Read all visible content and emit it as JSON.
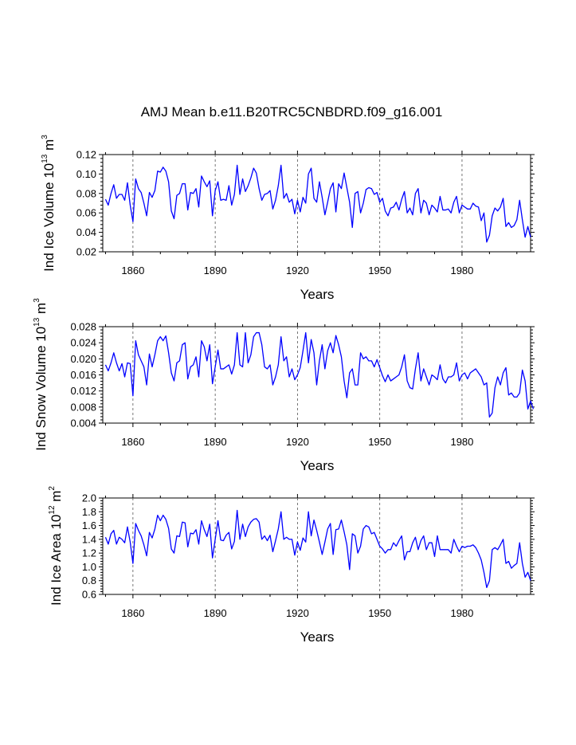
{
  "figure_title": "AMJ Mean b.e11.B20TRC5CNBDRD.f09_g16.001",
  "chart_data": [
    {
      "type": "line",
      "title": "",
      "ylabel": {
        "prefix": "Ind Ice Volume 10",
        "exp": "13",
        "unit": " m",
        "unit_exp": "3"
      },
      "xlabel": "Years",
      "xlim": [
        1849,
        2005
      ],
      "ylim": [
        0.02,
        0.12
      ],
      "xticks": [
        1860,
        1890,
        1920,
        1950,
        1980
      ],
      "xtick_labels": [
        "1860",
        "1890",
        "1920",
        "1950",
        "1980"
      ],
      "yticks": [
        0.02,
        0.04,
        0.06,
        0.08,
        0.1,
        0.12
      ],
      "ytick_labels": [
        "0.02",
        "0.04",
        "0.06",
        "0.08",
        "0.10",
        "0.12"
      ],
      "grid": "vertical dashed at x ticks",
      "line_color": "#0000ff",
      "x_start": 1850,
      "values": [
        0.074,
        0.068,
        0.08,
        0.089,
        0.075,
        0.079,
        0.079,
        0.073,
        0.091,
        0.068,
        0.051,
        0.095,
        0.085,
        0.081,
        0.07,
        0.057,
        0.081,
        0.076,
        0.083,
        0.103,
        0.102,
        0.107,
        0.103,
        0.092,
        0.062,
        0.054,
        0.078,
        0.08,
        0.09,
        0.09,
        0.063,
        0.081,
        0.08,
        0.085,
        0.066,
        0.098,
        0.092,
        0.087,
        0.093,
        0.057,
        0.083,
        0.092,
        0.073,
        0.074,
        0.073,
        0.088,
        0.068,
        0.079,
        0.109,
        0.079,
        0.095,
        0.082,
        0.088,
        0.096,
        0.106,
        0.101,
        0.085,
        0.073,
        0.079,
        0.08,
        0.083,
        0.064,
        0.073,
        0.088,
        0.109,
        0.075,
        0.08,
        0.071,
        0.074,
        0.059,
        0.073,
        0.061,
        0.076,
        0.07,
        0.1,
        0.106,
        0.075,
        0.071,
        0.092,
        0.076,
        0.058,
        0.071,
        0.085,
        0.091,
        0.061,
        0.09,
        0.085,
        0.101,
        0.086,
        0.071,
        0.045,
        0.08,
        0.082,
        0.06,
        0.07,
        0.084,
        0.086,
        0.085,
        0.079,
        0.081,
        0.071,
        0.075,
        0.062,
        0.057,
        0.065,
        0.066,
        0.071,
        0.063,
        0.074,
        0.082,
        0.06,
        0.065,
        0.058,
        0.08,
        0.085,
        0.06,
        0.073,
        0.07,
        0.058,
        0.068,
        0.065,
        0.061,
        0.077,
        0.063,
        0.063,
        0.064,
        0.06,
        0.071,
        0.077,
        0.06,
        0.068,
        0.066,
        0.064,
        0.064,
        0.07,
        0.067,
        0.066,
        0.052,
        0.06,
        0.03,
        0.037,
        0.057,
        0.065,
        0.062,
        0.066,
        0.075,
        0.046,
        0.05,
        0.045,
        0.047,
        0.053,
        0.073,
        0.053,
        0.035,
        0.046,
        0.035
      ]
    },
    {
      "type": "line",
      "title": "",
      "ylabel": {
        "prefix": "Ind Snow Volume 10",
        "exp": "13",
        "unit": " m",
        "unit_exp": "3"
      },
      "xlabel": "Years",
      "xlim": [
        1849,
        2005
      ],
      "ylim": [
        0.004,
        0.028
      ],
      "xticks": [
        1860,
        1890,
        1920,
        1950,
        1980
      ],
      "xtick_labels": [
        "1860",
        "1890",
        "1920",
        "1950",
        "1980"
      ],
      "yticks": [
        0.004,
        0.008,
        0.012,
        0.016,
        0.02,
        0.024,
        0.028
      ],
      "ytick_labels": [
        "0.004",
        "0.008",
        "0.012",
        "0.016",
        "0.020",
        "0.024",
        "0.028"
      ],
      "grid": "vertical dashed at x ticks",
      "line_color": "#0000ff",
      "x_start": 1850,
      "values": [
        0.0185,
        0.017,
        0.019,
        0.0215,
        0.019,
        0.017,
        0.0188,
        0.0155,
        0.019,
        0.0188,
        0.0108,
        0.0245,
        0.021,
        0.0195,
        0.018,
        0.0135,
        0.0212,
        0.018,
        0.021,
        0.0245,
        0.0255,
        0.0245,
        0.0257,
        0.0215,
        0.0165,
        0.0145,
        0.019,
        0.0195,
        0.0235,
        0.024,
        0.015,
        0.018,
        0.0185,
        0.0205,
        0.0155,
        0.0245,
        0.023,
        0.0195,
        0.0235,
        0.0138,
        0.018,
        0.0222,
        0.0175,
        0.0175,
        0.018,
        0.0185,
        0.0162,
        0.0185,
        0.0265,
        0.0185,
        0.018,
        0.0265,
        0.019,
        0.021,
        0.0255,
        0.0265,
        0.0265,
        0.0235,
        0.018,
        0.0175,
        0.0185,
        0.0135,
        0.0155,
        0.0185,
        0.0255,
        0.0195,
        0.0205,
        0.0155,
        0.0175,
        0.0148,
        0.016,
        0.0178,
        0.022,
        0.0265,
        0.019,
        0.0248,
        0.0215,
        0.0135,
        0.0195,
        0.0235,
        0.0175,
        0.022,
        0.024,
        0.0215,
        0.0258,
        0.0235,
        0.0205,
        0.0145,
        0.0103,
        0.0165,
        0.0175,
        0.0135,
        0.0135,
        0.0215,
        0.02,
        0.0205,
        0.0195,
        0.0195,
        0.018,
        0.0198,
        0.0178,
        0.0158,
        0.0143,
        0.016,
        0.0145,
        0.015,
        0.0155,
        0.016,
        0.018,
        0.021,
        0.0145,
        0.0128,
        0.0125,
        0.0175,
        0.0215,
        0.0145,
        0.0175,
        0.0155,
        0.0135,
        0.016,
        0.0155,
        0.0148,
        0.0185,
        0.015,
        0.014,
        0.0155,
        0.0155,
        0.016,
        0.019,
        0.0145,
        0.016,
        0.0165,
        0.015,
        0.0165,
        0.017,
        0.0175,
        0.0165,
        0.0155,
        0.0135,
        0.014,
        0.0055,
        0.0065,
        0.0128,
        0.0155,
        0.0135,
        0.0165,
        0.0178,
        0.011,
        0.0115,
        0.0105,
        0.0105,
        0.0115,
        0.0172,
        0.0145,
        0.0075,
        0.0095,
        0.0075
      ]
    },
    {
      "type": "line",
      "title": "",
      "ylabel": {
        "prefix": "Ind Ice Area 10",
        "exp": "12",
        "unit": " m",
        "unit_exp": "2"
      },
      "xlabel": "Years",
      "xlim": [
        1849,
        2005
      ],
      "ylim": [
        0.6,
        2.0
      ],
      "xticks": [
        1860,
        1890,
        1920,
        1950,
        1980
      ],
      "xtick_labels": [
        "1860",
        "1890",
        "1920",
        "1950",
        "1980"
      ],
      "yticks": [
        0.6,
        0.8,
        1.0,
        1.2,
        1.4,
        1.6,
        1.8,
        2.0
      ],
      "ytick_labels": [
        "0.6",
        "0.8",
        "1.0",
        "1.2",
        "1.4",
        "1.6",
        "1.8",
        "2.0"
      ],
      "grid": "vertical dashed at x ticks",
      "line_color": "#0000ff",
      "x_start": 1850,
      "values": [
        1.43,
        1.33,
        1.48,
        1.53,
        1.33,
        1.43,
        1.4,
        1.35,
        1.58,
        1.36,
        1.05,
        1.63,
        1.53,
        1.45,
        1.32,
        1.16,
        1.5,
        1.42,
        1.55,
        1.75,
        1.67,
        1.75,
        1.69,
        1.56,
        1.26,
        1.2,
        1.45,
        1.44,
        1.65,
        1.64,
        1.29,
        1.49,
        1.48,
        1.54,
        1.33,
        1.67,
        1.54,
        1.44,
        1.62,
        1.13,
        1.4,
        1.67,
        1.39,
        1.38,
        1.46,
        1.5,
        1.26,
        1.37,
        1.82,
        1.4,
        1.62,
        1.44,
        1.58,
        1.65,
        1.69,
        1.7,
        1.65,
        1.4,
        1.45,
        1.38,
        1.46,
        1.22,
        1.38,
        1.55,
        1.8,
        1.4,
        1.43,
        1.4,
        1.4,
        1.17,
        1.36,
        1.24,
        1.42,
        1.36,
        1.8,
        1.45,
        1.68,
        1.53,
        1.36,
        1.18,
        1.36,
        1.55,
        1.63,
        1.18,
        1.54,
        1.55,
        1.68,
        1.51,
        1.32,
        0.96,
        1.48,
        1.45,
        1.2,
        1.3,
        1.55,
        1.6,
        1.58,
        1.48,
        1.5,
        1.4,
        1.3,
        1.26,
        1.2,
        1.25,
        1.25,
        1.35,
        1.3,
        1.38,
        1.45,
        1.1,
        1.22,
        1.22,
        1.35,
        1.43,
        1.25,
        1.38,
        1.45,
        1.25,
        1.35,
        1.35,
        1.15,
        1.45,
        1.25,
        1.25,
        1.25,
        1.25,
        1.2,
        1.4,
        1.3,
        1.22,
        1.3,
        1.28,
        1.3,
        1.3,
        1.32,
        1.28,
        1.2,
        1.1,
        0.92,
        0.7,
        0.8,
        1.25,
        1.28,
        1.25,
        1.32,
        1.4,
        1.05,
        1.08,
        0.98,
        1.02,
        1.05,
        1.35,
        1.05,
        0.85,
        0.92,
        0.8
      ]
    }
  ]
}
